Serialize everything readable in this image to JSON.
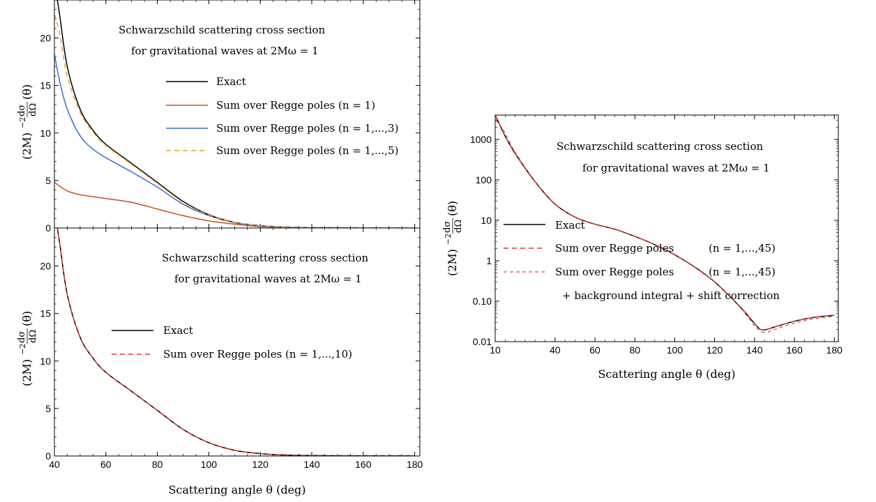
{
  "chart_data": [
    {
      "id": "top-left",
      "type": "line",
      "xlabel": "",
      "ylabel_parts": {
        "prefix": "(2M)",
        "exp": "−2",
        "num": "dσ",
        "den": "dΩ",
        "suffix": "(θ)"
      },
      "xlim": [
        40,
        182
      ],
      "ylim": [
        0,
        24
      ],
      "yscale": "linear",
      "xticks": [
        40,
        60,
        80,
        100,
        120,
        140,
        160,
        180
      ],
      "yticks": [
        0,
        5,
        10,
        15,
        20
      ],
      "show_xtick_labels": false,
      "annotation": [
        "Schwarzschild scattering cross section",
        "for gravitational waves at 2Mω = 1"
      ],
      "legend_position": "top-right",
      "series": [
        {
          "name": "Exact",
          "color": "#000000",
          "dash": "solid",
          "x": [
            40,
            42,
            45,
            50,
            55,
            60,
            70,
            80,
            90,
            100,
            110,
            120,
            130,
            140,
            150,
            160,
            170,
            180
          ],
          "y": [
            26,
            22.5,
            17,
            12.5,
            10.3,
            8.8,
            6.8,
            4.8,
            2.8,
            1.4,
            0.6,
            0.25,
            0.1,
            0.05,
            0.03,
            0.02,
            0.02,
            0.02
          ]
        },
        {
          "name": "Sum over Regge poles (n = 1)",
          "color": "#c8501e",
          "dash": "solid",
          "x": [
            40,
            45,
            50,
            55,
            60,
            70,
            80,
            90,
            100,
            110,
            120,
            130,
            140,
            160,
            180
          ],
          "y": [
            4.8,
            3.9,
            3.5,
            3.3,
            3.1,
            2.7,
            2.0,
            1.3,
            0.75,
            0.4,
            0.15,
            0.05,
            0.02,
            0.01,
            0.01
          ]
        },
        {
          "name": "Sum over Regge poles (n = 1,...,3)",
          "color": "#3a6fd2",
          "dash": "solid",
          "x": [
            40,
            42,
            45,
            50,
            55,
            60,
            70,
            80,
            90,
            100,
            110,
            120,
            130,
            140,
            160,
            180
          ],
          "y": [
            18.3,
            15.5,
            12.5,
            9.7,
            8.3,
            7.4,
            5.9,
            4.3,
            2.5,
            1.3,
            0.55,
            0.22,
            0.08,
            0.04,
            0.02,
            0.02
          ]
        },
        {
          "name": "Sum over Regge poles (n = 1,...,5)",
          "color": "#f0a020",
          "dash": "dashed",
          "x": [
            40,
            42,
            45,
            50,
            55,
            60,
            70,
            80,
            90,
            100,
            110,
            120,
            130,
            140,
            160,
            180
          ],
          "y": [
            22.5,
            20.5,
            16.0,
            12.2,
            10.1,
            8.7,
            6.7,
            4.7,
            2.7,
            1.35,
            0.6,
            0.25,
            0.1,
            0.05,
            0.02,
            0.02
          ]
        }
      ]
    },
    {
      "id": "bottom-left",
      "type": "line",
      "xlabel": "Scattering angle θ (deg)",
      "ylabel_parts": {
        "prefix": "(2M)",
        "exp": "−2",
        "num": "dσ",
        "den": "dΩ",
        "suffix": "(θ)"
      },
      "xlim": [
        40,
        182
      ],
      "ylim": [
        0,
        24
      ],
      "yscale": "linear",
      "xticks": [
        40,
        60,
        80,
        100,
        120,
        140,
        160,
        180
      ],
      "yticks": [
        0,
        5,
        10,
        15,
        20
      ],
      "show_xtick_labels": true,
      "annotation": [
        "Schwarzschild scattering cross section",
        "for gravitational waves at 2Mω = 1"
      ],
      "legend_position": "center-left",
      "series": [
        {
          "name": "Exact",
          "color": "#000000",
          "dash": "solid",
          "x": [
            40,
            42,
            45,
            50,
            55,
            60,
            70,
            80,
            90,
            100,
            110,
            120,
            130,
            140,
            150,
            160,
            170,
            180
          ],
          "y": [
            26,
            22.5,
            17,
            12.5,
            10.3,
            8.8,
            6.8,
            4.8,
            2.8,
            1.4,
            0.6,
            0.25,
            0.1,
            0.05,
            0.03,
            0.02,
            0.02,
            0.02
          ]
        },
        {
          "name": "Sum over Regge poles (n = 1,...,10)",
          "color": "#e8302a",
          "dash": "dashed",
          "x": [
            40,
            42,
            45,
            50,
            55,
            60,
            70,
            80,
            90,
            100,
            110,
            120,
            130,
            140,
            150,
            160,
            170,
            180
          ],
          "y": [
            26,
            22.5,
            17,
            12.5,
            10.3,
            8.8,
            6.8,
            4.8,
            2.8,
            1.4,
            0.6,
            0.25,
            0.1,
            0.05,
            0.03,
            0.02,
            0.02,
            0.02
          ]
        }
      ]
    },
    {
      "id": "right",
      "type": "line",
      "xlabel": "Scattering angle θ (deg)",
      "ylabel_parts": {
        "prefix": "(2M)",
        "exp": "−2",
        "num": "dσ",
        "den": "dΩ",
        "suffix": "(θ)"
      },
      "xlim": [
        10,
        182
      ],
      "ylim": [
        0.01,
        4000
      ],
      "yscale": "log",
      "xticks": [
        10,
        40,
        60,
        80,
        100,
        120,
        140,
        160,
        180
      ],
      "yticks": [
        0.01,
        0.1,
        1,
        10,
        100,
        1000
      ],
      "ytick_labels": [
        "0.01",
        "0.10",
        "1",
        "10",
        "100",
        "1000"
      ],
      "show_xtick_labels": true,
      "annotation": [
        "Schwarzschild scattering cross section",
        "for gravitational waves at 2Mω = 1"
      ],
      "legend_position": "center-left",
      "legend_extra_line": "+ background integral + shift correction",
      "series": [
        {
          "name": "Exact",
          "color": "#000000",
          "dash": "solid",
          "x": [
            10,
            15,
            20,
            30,
            40,
            50,
            60,
            70,
            80,
            90,
            100,
            110,
            120,
            130,
            135,
            140,
            143,
            146,
            150,
            160,
            170,
            180
          ],
          "y": [
            4000,
            1200,
            450,
            90,
            25,
            12,
            8,
            6,
            4,
            2.5,
            1.4,
            0.7,
            0.3,
            0.1,
            0.055,
            0.028,
            0.02,
            0.02,
            0.023,
            0.032,
            0.04,
            0.045
          ]
        },
        {
          "name": "Sum over Regge poles",
          "label_suffix": "(n = 1,...,45)",
          "color": "#e8302a",
          "dash": "dashed",
          "x": [
            10,
            15,
            20,
            30,
            40,
            50,
            60,
            70,
            80,
            90,
            100,
            110,
            120,
            130,
            135,
            140,
            143,
            146,
            150,
            160,
            170,
            180
          ],
          "y": [
            4000,
            1200,
            450,
            90,
            25,
            12,
            8,
            6,
            4,
            2.5,
            1.4,
            0.7,
            0.3,
            0.1,
            0.055,
            0.028,
            0.02,
            0.02,
            0.023,
            0.032,
            0.04,
            0.045
          ]
        },
        {
          "name": "Sum over Regge poles",
          "label_suffix": "(n = 1,...,45)",
          "color": "#b03028",
          "dash": "dashed-thin",
          "x": [
            10,
            12,
            15,
            20,
            30,
            40,
            50,
            60,
            70,
            80,
            90,
            100,
            110,
            120,
            130,
            135,
            140,
            143,
            146,
            150,
            160,
            170,
            180
          ],
          "y": [
            3000,
            2400,
            1400,
            480,
            92,
            25,
            12,
            8,
            6,
            4,
            2.5,
            1.4,
            0.7,
            0.3,
            0.1,
            0.052,
            0.025,
            0.018,
            0.017,
            0.02,
            0.029,
            0.037,
            0.042
          ]
        }
      ]
    }
  ]
}
